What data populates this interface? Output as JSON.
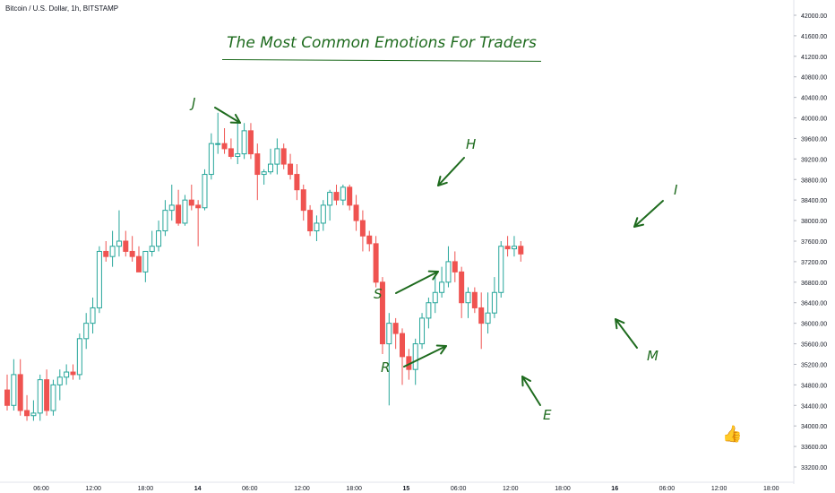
{
  "header": {
    "symbol_label": "Bitcoin / U.S. Dollar, 1h, BITSTAMP"
  },
  "colors": {
    "up": "#26a69a",
    "down": "#ef5350",
    "down_fill": "#ef5350",
    "annotation": "#1e6b1e",
    "grid": "#f0f3fa",
    "axis_text": "#131722"
  },
  "chart_data": {
    "type": "candlestick",
    "title": "The Most Common Emotions For Traders",
    "grid": false,
    "ylim": [
      33000,
      42200
    ],
    "y_ticks": [
      "42000.00",
      "41600.00",
      "41200.00",
      "40800.00",
      "40400.00",
      "40000.00",
      "39600.00",
      "39200.00",
      "38800.00",
      "38400.00",
      "38000.00",
      "37600.00",
      "37200.00",
      "36800.00",
      "36400.00",
      "36000.00",
      "35600.00",
      "35200.00",
      "34800.00",
      "34400.00",
      "34000.00",
      "33600.00",
      "33200.00"
    ],
    "x_ticks": [
      "06:00",
      "12:00",
      "18:00",
      "14",
      "06:00",
      "12:00",
      "18:00",
      "15",
      "06:00",
      "12:00",
      "18:00",
      "16",
      "06:00",
      "12:00",
      "18:00"
    ],
    "candles": [
      {
        "o": 34700,
        "h": 35000,
        "l": 34300,
        "c": 34400
      },
      {
        "o": 34400,
        "h": 35300,
        "l": 34300,
        "c": 35000
      },
      {
        "o": 35000,
        "h": 35300,
        "l": 34200,
        "c": 34300
      },
      {
        "o": 34300,
        "h": 34600,
        "l": 34100,
        "c": 34200
      },
      {
        "o": 34200,
        "h": 34500,
        "l": 34100,
        "c": 34250
      },
      {
        "o": 34250,
        "h": 35000,
        "l": 34100,
        "c": 34900
      },
      {
        "o": 34900,
        "h": 35100,
        "l": 34200,
        "c": 34300
      },
      {
        "o": 34300,
        "h": 34900,
        "l": 34200,
        "c": 34800
      },
      {
        "o": 34800,
        "h": 35100,
        "l": 34500,
        "c": 34950
      },
      {
        "o": 34950,
        "h": 35200,
        "l": 34800,
        "c": 35050
      },
      {
        "o": 35050,
        "h": 35200,
        "l": 34900,
        "c": 35000
      },
      {
        "o": 35000,
        "h": 35800,
        "l": 34900,
        "c": 35700
      },
      {
        "o": 35700,
        "h": 36200,
        "l": 35500,
        "c": 36000
      },
      {
        "o": 36000,
        "h": 36500,
        "l": 35800,
        "c": 36300
      },
      {
        "o": 36300,
        "h": 37500,
        "l": 36200,
        "c": 37400
      },
      {
        "o": 37400,
        "h": 37600,
        "l": 37200,
        "c": 37300
      },
      {
        "o": 37300,
        "h": 37800,
        "l": 37100,
        "c": 37500
      },
      {
        "o": 37500,
        "h": 38200,
        "l": 37300,
        "c": 37600
      },
      {
        "o": 37600,
        "h": 37800,
        "l": 37300,
        "c": 37400
      },
      {
        "o": 37400,
        "h": 37700,
        "l": 37200,
        "c": 37300
      },
      {
        "o": 37300,
        "h": 37500,
        "l": 37000,
        "c": 37000
      },
      {
        "o": 37000,
        "h": 37400,
        "l": 36800,
        "c": 37400
      },
      {
        "o": 37400,
        "h": 37800,
        "l": 37300,
        "c": 37500
      },
      {
        "o": 37500,
        "h": 38000,
        "l": 37400,
        "c": 37800
      },
      {
        "o": 37800,
        "h": 38400,
        "l": 37700,
        "c": 38200
      },
      {
        "o": 38200,
        "h": 38700,
        "l": 38000,
        "c": 38300
      },
      {
        "o": 38300,
        "h": 38600,
        "l": 37900,
        "c": 37950
      },
      {
        "o": 37950,
        "h": 38500,
        "l": 37900,
        "c": 38400
      },
      {
        "o": 38400,
        "h": 38700,
        "l": 38200,
        "c": 38300
      },
      {
        "o": 38300,
        "h": 38400,
        "l": 37500,
        "c": 38250
      },
      {
        "o": 38250,
        "h": 39000,
        "l": 38200,
        "c": 38900
      },
      {
        "o": 38900,
        "h": 39700,
        "l": 38800,
        "c": 39500
      },
      {
        "o": 39500,
        "h": 40100,
        "l": 39300,
        "c": 39500
      },
      {
        "o": 39500,
        "h": 39800,
        "l": 39300,
        "c": 39400
      },
      {
        "o": 39400,
        "h": 39600,
        "l": 39200,
        "c": 39250
      },
      {
        "o": 39250,
        "h": 39900,
        "l": 39100,
        "c": 39300
      },
      {
        "o": 39300,
        "h": 39900,
        "l": 39200,
        "c": 39750
      },
      {
        "o": 39750,
        "h": 39900,
        "l": 39200,
        "c": 39300
      },
      {
        "o": 39300,
        "h": 39500,
        "l": 38400,
        "c": 38900
      },
      {
        "o": 38900,
        "h": 39000,
        "l": 38700,
        "c": 38950
      },
      {
        "o": 38950,
        "h": 39400,
        "l": 38900,
        "c": 39100
      },
      {
        "o": 39100,
        "h": 39600,
        "l": 38900,
        "c": 39400
      },
      {
        "o": 39400,
        "h": 39500,
        "l": 39000,
        "c": 39100
      },
      {
        "o": 39100,
        "h": 39300,
        "l": 38800,
        "c": 38900
      },
      {
        "o": 38900,
        "h": 39100,
        "l": 38400,
        "c": 38600
      },
      {
        "o": 38600,
        "h": 38700,
        "l": 38000,
        "c": 38200
      },
      {
        "o": 38200,
        "h": 38300,
        "l": 37700,
        "c": 37800
      },
      {
        "o": 37800,
        "h": 38100,
        "l": 37600,
        "c": 37950
      },
      {
        "o": 37950,
        "h": 38400,
        "l": 37800,
        "c": 38300
      },
      {
        "o": 38300,
        "h": 38600,
        "l": 38000,
        "c": 38550
      },
      {
        "o": 38550,
        "h": 38700,
        "l": 38300,
        "c": 38400
      },
      {
        "o": 38400,
        "h": 38700,
        "l": 38300,
        "c": 38650
      },
      {
        "o": 38650,
        "h": 38700,
        "l": 38200,
        "c": 38300
      },
      {
        "o": 38300,
        "h": 38500,
        "l": 37800,
        "c": 38000
      },
      {
        "o": 38000,
        "h": 38200,
        "l": 37400,
        "c": 37700
      },
      {
        "o": 37700,
        "h": 37800,
        "l": 37400,
        "c": 37550
      },
      {
        "o": 37550,
        "h": 37700,
        "l": 36700,
        "c": 36800
      },
      {
        "o": 36800,
        "h": 36900,
        "l": 35400,
        "c": 35600
      },
      {
        "o": 35600,
        "h": 36200,
        "l": 34400,
        "c": 36000
      },
      {
        "o": 36000,
        "h": 36100,
        "l": 35500,
        "c": 35800
      },
      {
        "o": 35800,
        "h": 35900,
        "l": 34800,
        "c": 35350
      },
      {
        "o": 35350,
        "h": 35500,
        "l": 34900,
        "c": 35100
      },
      {
        "o": 35100,
        "h": 35700,
        "l": 34800,
        "c": 35600
      },
      {
        "o": 35600,
        "h": 36200,
        "l": 35500,
        "c": 36100
      },
      {
        "o": 36100,
        "h": 36500,
        "l": 35900,
        "c": 36400
      },
      {
        "o": 36400,
        "h": 36900,
        "l": 36200,
        "c": 36600
      },
      {
        "o": 36600,
        "h": 37100,
        "l": 36500,
        "c": 36800
      },
      {
        "o": 36800,
        "h": 37500,
        "l": 36700,
        "c": 37200
      },
      {
        "o": 37200,
        "h": 37400,
        "l": 36800,
        "c": 37000
      },
      {
        "o": 37000,
        "h": 37100,
        "l": 36100,
        "c": 36400
      },
      {
        "o": 36400,
        "h": 36700,
        "l": 36100,
        "c": 36600
      },
      {
        "o": 36600,
        "h": 36700,
        "l": 36200,
        "c": 36300
      },
      {
        "o": 36300,
        "h": 36600,
        "l": 35500,
        "c": 36000
      },
      {
        "o": 36000,
        "h": 36600,
        "l": 35800,
        "c": 36200
      },
      {
        "o": 36200,
        "h": 36900,
        "l": 36100,
        "c": 36600
      },
      {
        "o": 36600,
        "h": 37600,
        "l": 36500,
        "c": 37500
      },
      {
        "o": 37500,
        "h": 37700,
        "l": 37300,
        "c": 37450
      },
      {
        "o": 37450,
        "h": 37700,
        "l": 37300,
        "c": 37500
      },
      {
        "o": 37500,
        "h": 37600,
        "l": 37200,
        "c": 37350
      }
    ],
    "annotations": [
      {
        "label": "J",
        "points_to": 30
      },
      {
        "label": "H",
        "points_to": 51
      },
      {
        "label": "I",
        "points_to": 75
      },
      {
        "label": "S",
        "points_to": 55
      },
      {
        "label": "R",
        "points_to": 57
      },
      {
        "label": "E",
        "points_to": 60
      },
      {
        "label": "M",
        "points_to": 73
      }
    ]
  }
}
